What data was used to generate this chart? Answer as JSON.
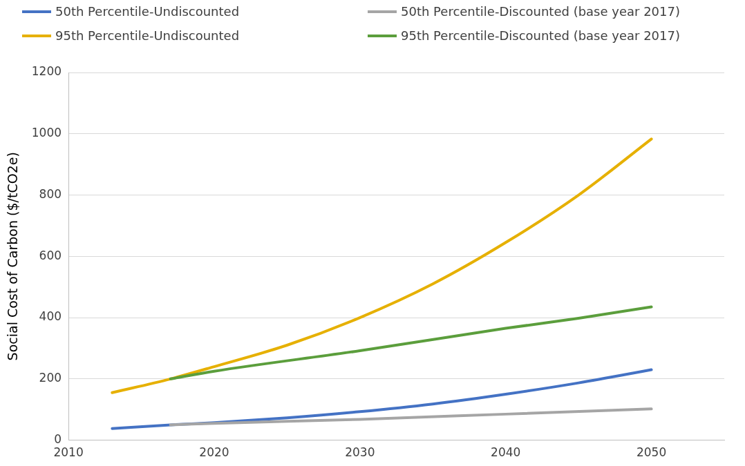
{
  "chart_data": {
    "type": "line",
    "ylabel": "Social Cost of Carbon ($/tCO2e)",
    "xlim": [
      2010,
      2055
    ],
    "xticks": [
      2010,
      2020,
      2030,
      2040,
      2050
    ],
    "ylim": [
      0,
      1200
    ],
    "yticks": [
      0,
      200,
      400,
      600,
      800,
      1000,
      1200
    ],
    "grid": "y",
    "legend": "top",
    "marker": "none",
    "line_style": "solid",
    "series": [
      {
        "name": "50th Percentile-Undiscounted",
        "color": "#4472c4",
        "x": [
          2013,
          2017,
          2020,
          2025,
          2030,
          2035,
          2040,
          2045,
          2050
        ],
        "values": [
          38,
          50,
          57,
          73,
          93,
          118,
          150,
          187,
          230
        ]
      },
      {
        "name": "50th Percentile-Discounted (base year 2017)",
        "color": "#a5a5a5",
        "x": [
          2017,
          2020,
          2030,
          2040,
          2050
        ],
        "values": [
          50,
          55,
          68,
          85,
          102
        ]
      },
      {
        "name": "95th Percentile-Undiscounted",
        "color": "#e6b000",
        "x": [
          2013,
          2017,
          2020,
          2025,
          2030,
          2035,
          2040,
          2045,
          2050
        ],
        "values": [
          155,
          200,
          240,
          310,
          400,
          510,
          645,
          800,
          983
        ]
      },
      {
        "name": "95th Percentile-Discounted (base year 2017)",
        "color": "#5b9e3c",
        "x": [
          2017,
          2020,
          2030,
          2040,
          2045,
          2050
        ],
        "values": [
          200,
          225,
          292,
          365,
          398,
          435
        ]
      }
    ]
  }
}
